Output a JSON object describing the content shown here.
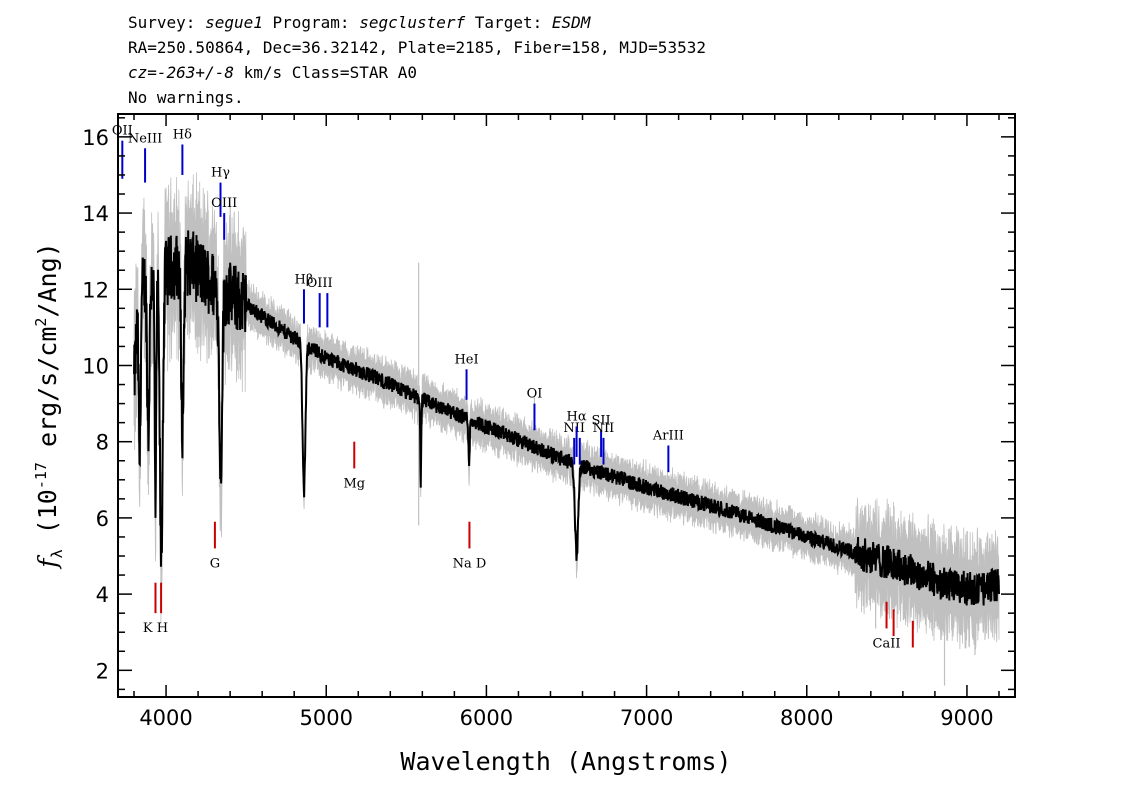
{
  "header": {
    "line1": {
      "survey_label": "Survey: ",
      "survey": "segue1",
      "program_label": " Program: ",
      "program": "segclusterf",
      "target_label": " Target: ",
      "target": "ESDM"
    },
    "line2": "RA=250.50864, Dec=36.32142, Plate=2185, Fiber=158, MJD=53532",
    "line3": {
      "cz": "cz=-263+/-8",
      "rest": " km/s Class=STAR A0"
    },
    "line4": "No warnings."
  },
  "chart_data": {
    "type": "line",
    "xlabel": "Wavelength (Angstroms)",
    "ylabel": {
      "f": "f",
      "sub": "λ",
      "pre": " (10",
      "exp1": "-17",
      "mid": " erg/s/cm",
      "exp2": "2",
      "post": "/Ang)"
    },
    "xlim": [
      3700,
      9300
    ],
    "ylim": [
      1.3,
      16.6
    ],
    "x_ticks": [
      4000,
      5000,
      6000,
      7000,
      8000,
      9000
    ],
    "y_ticks": [
      2,
      4,
      6,
      8,
      10,
      12,
      14,
      16
    ],
    "grid": false,
    "series": [
      {
        "role": "flux",
        "color": "#000000",
        "continuum": [
          [
            3800,
            9.5
          ],
          [
            3830,
            11.8
          ],
          [
            3870,
            12.2
          ],
          [
            3950,
            12.3
          ],
          [
            4050,
            12.6
          ],
          [
            4150,
            12.7
          ],
          [
            4300,
            12.1
          ],
          [
            4500,
            11.6
          ],
          [
            4700,
            11.0
          ],
          [
            5000,
            10.2
          ],
          [
            5300,
            9.7
          ],
          [
            5600,
            9.1
          ],
          [
            6000,
            8.4
          ],
          [
            6500,
            7.5
          ],
          [
            7000,
            6.8
          ],
          [
            7500,
            6.2
          ],
          [
            8000,
            5.5
          ],
          [
            8300,
            5.1
          ],
          [
            8600,
            4.7
          ],
          [
            8900,
            4.2
          ],
          [
            9100,
            4.1
          ],
          [
            9200,
            4.3
          ]
        ],
        "absorption_features": [
          {
            "center": 3835,
            "depth": 4.3,
            "width": 6
          },
          {
            "center": 3889,
            "depth": 4.0,
            "width": 7
          },
          {
            "center": 3934,
            "depth": 6.0,
            "width": 5
          },
          {
            "center": 3970,
            "depth": 7.5,
            "width": 9
          },
          {
            "center": 4102,
            "depth": 4.2,
            "width": 8
          },
          {
            "center": 4341,
            "depth": 4.7,
            "width": 9
          },
          {
            "center": 4861,
            "depth": 3.9,
            "width": 9
          },
          {
            "center": 5590,
            "depth": 2.2,
            "width": 3
          },
          {
            "center": 5892,
            "depth": 1.1,
            "width": 4
          },
          {
            "center": 6563,
            "depth": 2.4,
            "width": 10
          }
        ]
      },
      {
        "role": "error",
        "color": "#c0c0c0"
      }
    ],
    "line_markers": [
      {
        "label": "OII",
        "x": 3727,
        "y_top": 15.9,
        "y_bot": 14.9,
        "color": "#0000cc"
      },
      {
        "label": "NeIII",
        "x": 3869,
        "y_top": 15.7,
        "y_bot": 14.8,
        "color": "#0000cc"
      },
      {
        "label": "Hδ",
        "x": 4102,
        "y_top": 15.8,
        "y_bot": 15.0,
        "color": "#0000cc"
      },
      {
        "label": "Hγ",
        "x": 4340,
        "y_top": 14.8,
        "y_bot": 13.9,
        "color": "#0000cc"
      },
      {
        "label": "OIII",
        "x": 4363,
        "y_top": 14.0,
        "y_bot": 13.3,
        "color": "#0000cc"
      },
      {
        "label": "Hβ",
        "x": 4861,
        "y_top": 12.0,
        "y_bot": 11.1,
        "color": "#0000cc"
      },
      {
        "label": "OIII",
        "x": 4959,
        "y_top": 11.9,
        "y_bot": 11.0,
        "color": "#0000cc"
      },
      {
        "label": "",
        "x": 5007,
        "y_top": 11.9,
        "y_bot": 11.0,
        "color": "#0000cc"
      },
      {
        "label": "HeI",
        "x": 5876,
        "y_top": 9.9,
        "y_bot": 9.1,
        "color": "#0000cc"
      },
      {
        "label": "OI",
        "x": 6300,
        "y_top": 9.0,
        "y_bot": 8.3,
        "color": "#0000cc"
      },
      {
        "label": "NII",
        "x": 6548,
        "y_top": 8.1,
        "y_bot": 7.4,
        "color": "#0000cc"
      },
      {
        "label": "Hα",
        "x": 6563,
        "y_top": 8.4,
        "y_bot": 7.6,
        "color": "#0000cc"
      },
      {
        "label": "",
        "x": 6583,
        "y_top": 8.1,
        "y_bot": 7.4,
        "color": "#0000cc"
      },
      {
        "label": "SII",
        "x": 6716,
        "y_top": 8.3,
        "y_bot": 7.6,
        "color": "#0000cc"
      },
      {
        "label": "NII",
        "x": 6731,
        "y_top": 8.1,
        "y_bot": 7.4,
        "color": "#0000cc"
      },
      {
        "label": "ArIII",
        "x": 7136,
        "y_top": 7.9,
        "y_bot": 7.2,
        "color": "#0000cc"
      },
      {
        "label": "K H",
        "x": 3934,
        "y_top": 4.3,
        "y_bot": 3.5,
        "color": "#cc0000"
      },
      {
        "label": "",
        "x": 3969,
        "y_top": 4.3,
        "y_bot": 3.5,
        "color": "#cc0000"
      },
      {
        "label": "G",
        "x": 4305,
        "y_top": 5.9,
        "y_bot": 5.2,
        "color": "#cc0000"
      },
      {
        "label": "Mg",
        "x": 5175,
        "y_top": 8.0,
        "y_bot": 7.3,
        "color": "#cc0000"
      },
      {
        "label": "Na D",
        "x": 5894,
        "y_top": 5.9,
        "y_bot": 5.2,
        "color": "#cc0000"
      },
      {
        "label": "CaII",
        "x": 8498,
        "y_top": 3.8,
        "y_bot": 3.1,
        "color": "#cc0000"
      },
      {
        "label": "",
        "x": 8542,
        "y_top": 3.6,
        "y_bot": 2.9,
        "color": "#cc0000"
      },
      {
        "label": "",
        "x": 8662,
        "y_top": 3.3,
        "y_bot": 2.6,
        "color": "#cc0000"
      }
    ]
  }
}
